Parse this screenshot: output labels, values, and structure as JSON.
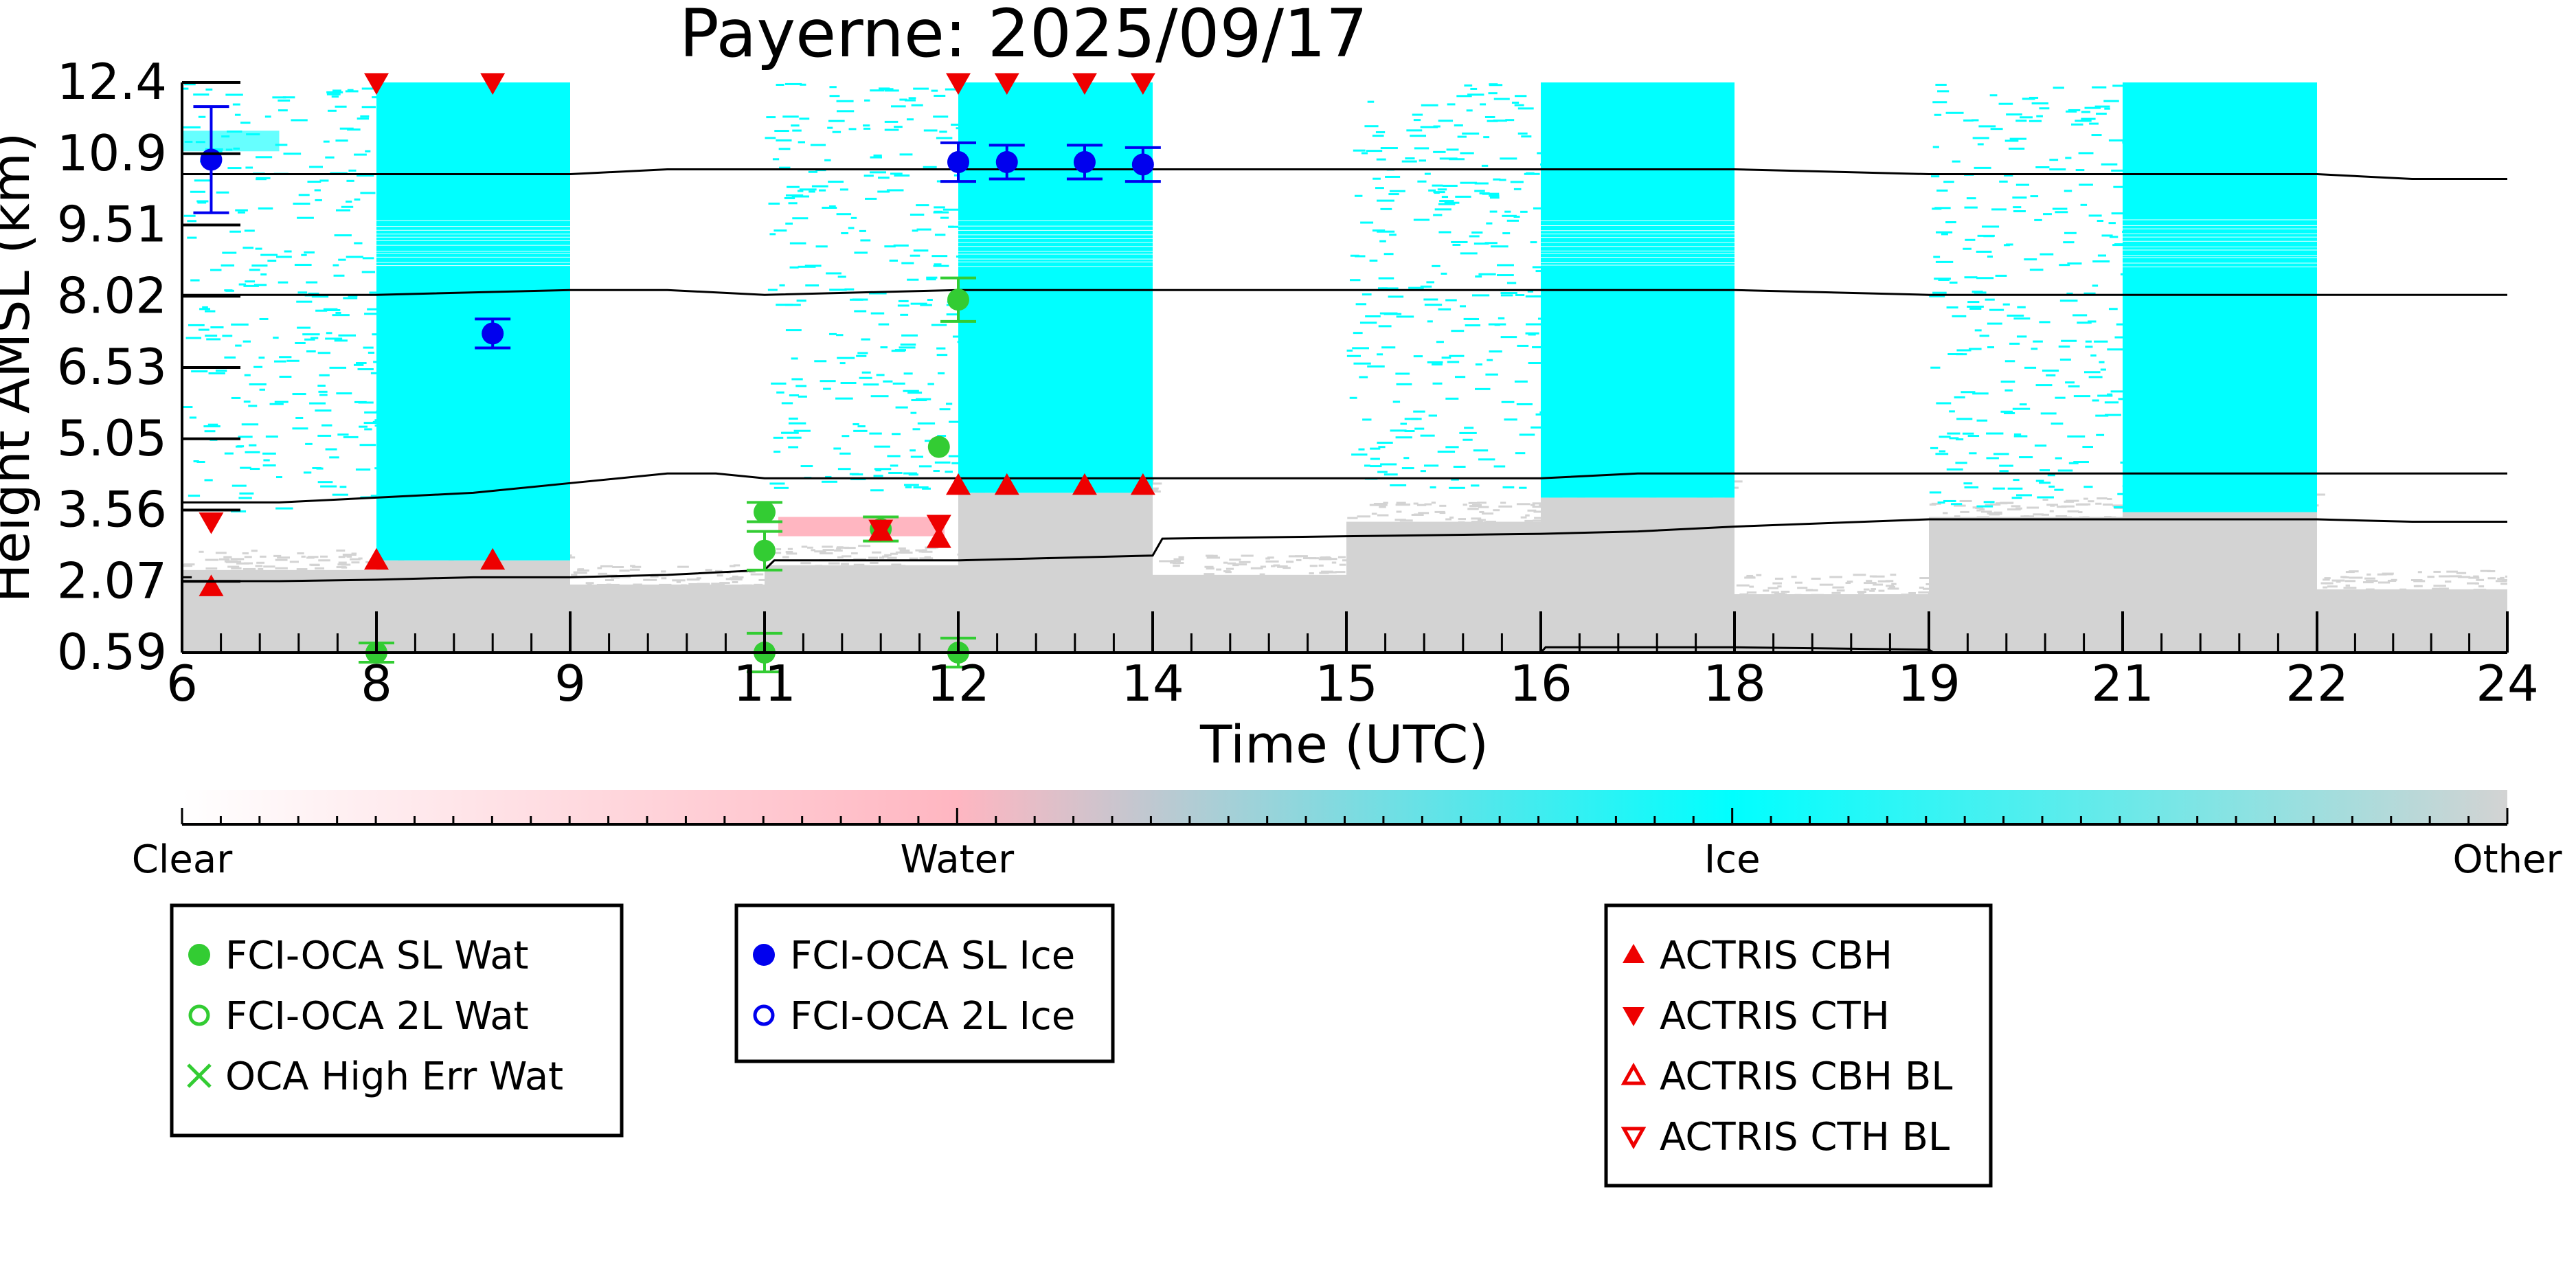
{
  "chart_data": {
    "type": "scatter",
    "title": "Payerne: 2025/09/17",
    "xlabel": "Time (UTC)",
    "ylabel": "Height AMSL (km)",
    "x_tick_labels": [
      "6",
      "8",
      "9",
      "11",
      "12",
      "14",
      "15",
      "16",
      "18",
      "19",
      "21",
      "22",
      "24"
    ],
    "y_tick_labels": [
      "0.59",
      "2.07",
      "3.56",
      "5.05",
      "6.53",
      "8.02",
      "9.51",
      "10.9",
      "12.4"
    ],
    "ylim": [
      0.59,
      12.4
    ],
    "grid": false,
    "background": {
      "description_source": "cloud phase classification",
      "categories": [
        "Clear",
        "Water",
        "Ice",
        "Other"
      ],
      "blocks": [
        {
          "x": [
            6,
            8
          ],
          "other_top": 2.3,
          "ice_speckle_from": 3.5,
          "ice_fill_from": null
        },
        {
          "x": [
            8,
            9
          ],
          "other_top": 2.5,
          "ice_speckle_from": null,
          "ice_fill_from": 2.5
        },
        {
          "x": [
            9,
            11
          ],
          "other_top": 2.0,
          "ice_speckle_from": null,
          "ice_fill_from": null
        },
        {
          "x": [
            11,
            12
          ],
          "other_top": 2.4,
          "ice_speckle_from": 3.9,
          "ice_fill_from": null,
          "water_band": [
            3.0,
            3.4
          ]
        },
        {
          "x": [
            12,
            14
          ],
          "other_top": 3.9,
          "ice_speckle_from": null,
          "ice_fill_from": 3.9
        },
        {
          "x": [
            14,
            15
          ],
          "other_top": 2.2,
          "ice_speckle_from": null,
          "ice_fill_from": null
        },
        {
          "x": [
            15,
            16
          ],
          "other_top": 3.3,
          "ice_speckle_from": 4.0,
          "ice_fill_from": null
        },
        {
          "x": [
            16,
            18
          ],
          "other_top": 3.8,
          "ice_speckle_from": null,
          "ice_fill_from": 3.8
        },
        {
          "x": [
            18,
            19
          ],
          "other_top": 1.8,
          "ice_speckle_from": null,
          "ice_fill_from": null
        },
        {
          "x": [
            19,
            21
          ],
          "other_top": 3.4,
          "ice_speckle_from": 3.5,
          "ice_fill_from": null
        },
        {
          "x": [
            21,
            22
          ],
          "other_top": 3.5,
          "ice_speckle_from": null,
          "ice_fill_from": 3.5
        },
        {
          "x": [
            22,
            24
          ],
          "other_top": 1.9,
          "ice_speckle_from": null,
          "ice_fill_from": null
        }
      ]
    },
    "lines": [
      {
        "x": [
          6,
          7,
          8,
          9,
          10,
          11,
          12,
          13,
          14,
          15,
          16,
          17,
          18,
          19,
          20,
          21,
          22,
          23,
          24
        ],
        "y": [
          10.5,
          10.5,
          10.5,
          10.5,
          10.6,
          10.6,
          10.6,
          10.6,
          10.6,
          10.6,
          10.6,
          10.6,
          10.6,
          10.5,
          10.5,
          10.5,
          10.5,
          10.4,
          10.4
        ]
      },
      {
        "x": [
          6,
          7,
          8,
          9,
          10,
          11,
          12,
          13,
          14,
          15,
          16,
          17,
          18,
          19,
          20,
          21,
          22,
          23,
          24
        ],
        "y": [
          8.0,
          8.0,
          8.0,
          8.1,
          8.1,
          8.0,
          8.1,
          8.1,
          8.1,
          8.1,
          8.1,
          8.1,
          8.1,
          8.0,
          8.0,
          8.0,
          8.0,
          8.0,
          8.0
        ]
      },
      {
        "x": [
          6,
          7,
          8,
          8.5,
          9,
          10,
          10.5,
          11,
          12,
          13,
          14,
          15,
          16,
          17,
          18,
          19,
          20,
          21,
          22,
          23,
          24
        ],
        "y": [
          3.7,
          3.7,
          3.8,
          3.9,
          4.1,
          4.3,
          4.3,
          4.2,
          4.2,
          4.2,
          4.2,
          4.2,
          4.2,
          4.3,
          4.3,
          4.3,
          4.3,
          4.3,
          4.3,
          4.3,
          4.3
        ]
      },
      {
        "x": [
          6,
          7,
          8,
          8.5,
          9,
          10,
          11,
          11.05,
          12,
          13,
          14,
          14.05,
          15,
          16,
          17,
          18,
          19,
          20,
          21,
          22,
          23,
          24
        ],
        "y": [
          2.07,
          2.07,
          2.1,
          2.15,
          2.15,
          2.2,
          2.3,
          2.5,
          2.5,
          2.55,
          2.6,
          2.95,
          3.0,
          3.05,
          3.1,
          3.2,
          3.35,
          3.35,
          3.35,
          3.35,
          3.3,
          3.3
        ]
      },
      {
        "x": [
          6,
          6.1
        ],
        "y": [
          2.15,
          2.15
        ]
      },
      {
        "x": [
          16,
          16.05,
          18,
          19,
          19.05
        ],
        "y": [
          0.59,
          0.7,
          0.7,
          0.65,
          0.59
        ]
      }
    ],
    "series": [
      {
        "name": "FCI-OCA SL Wat",
        "marker": "filled-circle",
        "color": "#33cc33",
        "points": [
          {
            "x": 8,
            "y": 0.59,
            "err": 0.2
          },
          {
            "x": 11,
            "y": 3.5,
            "err": 0.2
          },
          {
            "x": 11,
            "y": 2.7,
            "err": 0.4
          },
          {
            "x": 11,
            "y": 0.59,
            "err": 0.4
          },
          {
            "x": 11.6,
            "y": 3.15,
            "err": 0.25
          },
          {
            "x": 11.9,
            "y": 4.85,
            "err": 0.0
          },
          {
            "x": 12,
            "y": 7.9,
            "err": 0.45
          },
          {
            "x": 12,
            "y": 0.59,
            "err": 0.3
          }
        ]
      },
      {
        "name": "FCI-OCA 2L Wat",
        "marker": "open-circle",
        "color": "#33cc33",
        "points": []
      },
      {
        "name": "OCA High Err Wat",
        "marker": "x",
        "color": "#33cc33",
        "points": []
      },
      {
        "name": "FCI-OCA SL Ice",
        "marker": "filled-circle",
        "color": "#0000ee",
        "points": [
          {
            "x": 6.3,
            "y": 10.8,
            "err": 1.1
          },
          {
            "x": 8.6,
            "y": 7.2,
            "err": 0.3
          },
          {
            "x": 12,
            "y": 10.75,
            "err": 0.4
          },
          {
            "x": 12.5,
            "y": 10.75,
            "err": 0.35
          },
          {
            "x": 13.3,
            "y": 10.75,
            "err": 0.35
          },
          {
            "x": 13.9,
            "y": 10.7,
            "err": 0.35
          }
        ]
      },
      {
        "name": "FCI-OCA 2L Ice",
        "marker": "open-circle",
        "color": "#0000ee",
        "points": []
      },
      {
        "name": "ACTRIS CBH",
        "marker": "triangle-up",
        "color": "#ee0000",
        "points": [
          {
            "x": 6.3,
            "y": 1.95
          },
          {
            "x": 8,
            "y": 2.5
          },
          {
            "x": 8.6,
            "y": 2.5
          },
          {
            "x": 11.6,
            "y": 3.1
          },
          {
            "x": 11.9,
            "y": 2.95
          },
          {
            "x": 12,
            "y": 4.05
          },
          {
            "x": 12.5,
            "y": 4.05
          },
          {
            "x": 13.3,
            "y": 4.05
          },
          {
            "x": 13.9,
            "y": 4.05
          }
        ]
      },
      {
        "name": "ACTRIS CTH",
        "marker": "triangle-down",
        "color": "#ee0000",
        "points": [
          {
            "x": 6.3,
            "y": 3.3
          },
          {
            "x": 8,
            "y": 12.4
          },
          {
            "x": 8.6,
            "y": 12.4
          },
          {
            "x": 11.6,
            "y": 3.15
          },
          {
            "x": 11.9,
            "y": 3.25
          },
          {
            "x": 12,
            "y": 12.4
          },
          {
            "x": 12.5,
            "y": 12.4
          },
          {
            "x": 13.3,
            "y": 12.4
          },
          {
            "x": 13.9,
            "y": 12.4
          }
        ]
      },
      {
        "name": "ACTRIS CBH BL",
        "marker": "open-triangle-up",
        "color": "#ee0000",
        "points": []
      },
      {
        "name": "ACTRIS CTH BL",
        "marker": "open-triangle-down",
        "color": "#ee0000",
        "points": []
      }
    ],
    "colorbar": {
      "labels": [
        "Clear",
        "Water",
        "Ice",
        "Other"
      ],
      "colors": [
        "#ffffff",
        "#ffb6c1",
        "#00ffff",
        "#d3d3d3"
      ]
    },
    "legend": {
      "placement": "below",
      "groups": [
        [
          "FCI-OCA SL Wat",
          "FCI-OCA 2L Wat",
          "OCA High Err Wat"
        ],
        [
          "FCI-OCA SL Ice",
          "FCI-OCA 2L Ice"
        ],
        [
          "ACTRIS CBH",
          "ACTRIS CTH",
          "ACTRIS CBH BL",
          "ACTRIS CTH BL"
        ]
      ]
    }
  }
}
